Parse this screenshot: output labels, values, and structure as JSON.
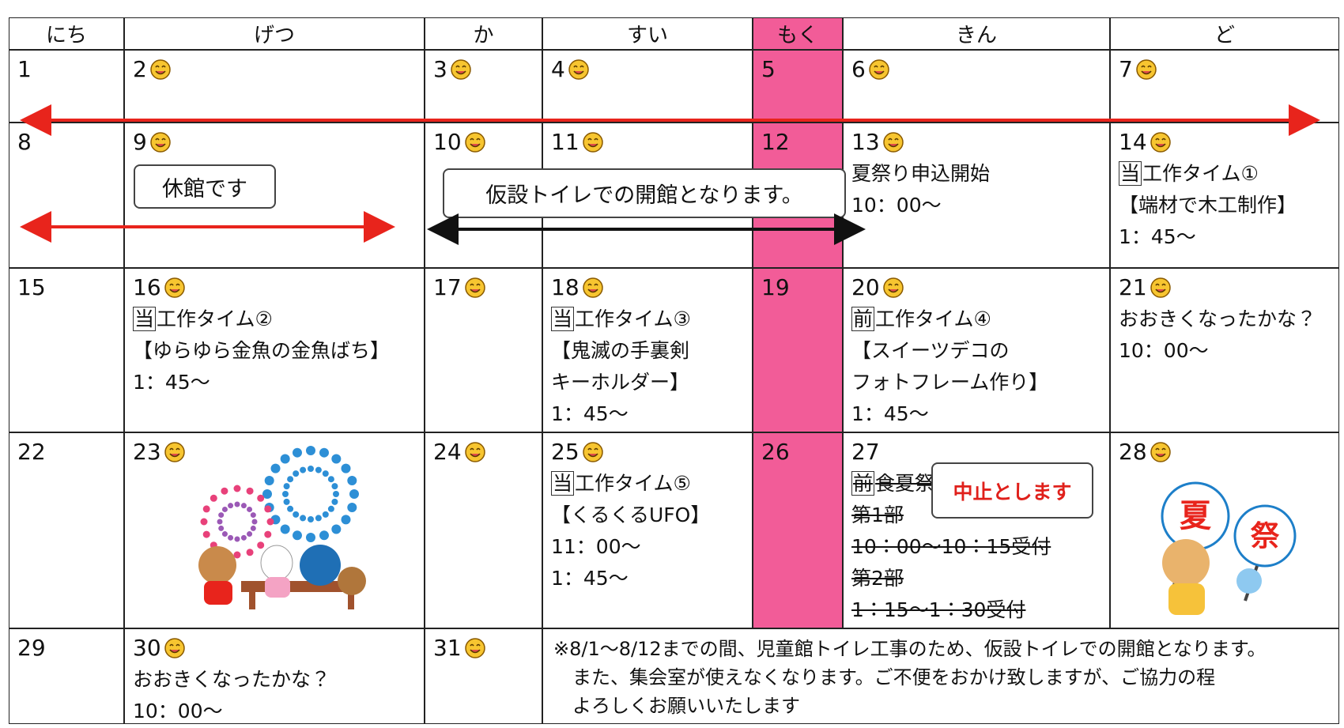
{
  "header": {
    "days": [
      "にち",
      "げつ",
      "か",
      "すい",
      "もく",
      "きん",
      "ど"
    ]
  },
  "weeks": [
    {
      "cells": [
        {
          "date": "1"
        },
        {
          "date": "2",
          "smile": true
        },
        {
          "date": "3",
          "smile": true
        },
        {
          "date": "4",
          "smile": true
        },
        {
          "date": "5"
        },
        {
          "date": "6",
          "smile": true
        },
        {
          "date": "7",
          "smile": true
        }
      ]
    },
    {
      "cells": [
        {
          "date": "8"
        },
        {
          "date": "9",
          "smile": true
        },
        {
          "date": "10",
          "smile": true
        },
        {
          "date": "11",
          "smile": true
        },
        {
          "date": "12"
        },
        {
          "date": "13",
          "smile": true,
          "lines": [
            "夏祭り申込開始",
            "10：00～"
          ]
        },
        {
          "date": "14",
          "smile": true,
          "tag": "当",
          "lines": [
            "工作タイム①",
            "【端材で木工制作】",
            "1：45～"
          ]
        }
      ],
      "closed_box": "休館です",
      "notice": "仮設トイレでの開館となります。"
    },
    {
      "cells": [
        {
          "date": "15"
        },
        {
          "date": "16",
          "smile": true,
          "tag": "当",
          "lines": [
            "工作タイム②",
            "【ゆらゆら金魚の金魚ばち】",
            "1：45～"
          ]
        },
        {
          "date": "17",
          "smile": true
        },
        {
          "date": "18",
          "smile": true,
          "tag": "当",
          "lines": [
            "工作タイム③",
            "【鬼滅の手裏剣",
            "キーホルダー】",
            "1：45～"
          ]
        },
        {
          "date": "19"
        },
        {
          "date": "20",
          "smile": true,
          "tag": "前",
          "lines": [
            "工作タイム④",
            "【スイーツデコの",
            "フォトフレーム作り】",
            "1：45～"
          ]
        },
        {
          "date": "21",
          "smile": true,
          "lines": [
            "おおきくなったかな？",
            "10：00～"
          ]
        }
      ]
    },
    {
      "cells": [
        {
          "date": "22"
        },
        {
          "date": "23",
          "smile": true
        },
        {
          "date": "24",
          "smile": true
        },
        {
          "date": "25",
          "smile": true,
          "tag": "当",
          "lines": [
            "工作タイム⑤",
            "【くるくるUFO】",
            "11：00～",
            "1：45～"
          ]
        },
        {
          "date": "26"
        },
        {
          "date": "27",
          "tag": "前",
          "strike": true,
          "lines": [
            "食夏祭",
            "第1部",
            "10：00～10：15受付",
            "第2部",
            "1：15～1：30受付"
          ]
        },
        {
          "date": "28",
          "smile": true
        }
      ],
      "cancel_box": "中止とします",
      "fan_texts": [
        "夏",
        "祭"
      ]
    },
    {
      "cells": [
        {
          "date": "29"
        },
        {
          "date": "30",
          "smile": true,
          "lines": [
            "おおきくなったかな？",
            "10：00～"
          ]
        },
        {
          "date": "31",
          "smile": true
        }
      ],
      "notes": [
        "※8/1～8/12までの間、児童館トイレ工事のため、仮設トイレでの開館となります。",
        "また、集会室が使えなくなります。ご不便をおかけ致しますが、ご協力の程",
        "よろしくお願いいたします"
      ]
    }
  ]
}
